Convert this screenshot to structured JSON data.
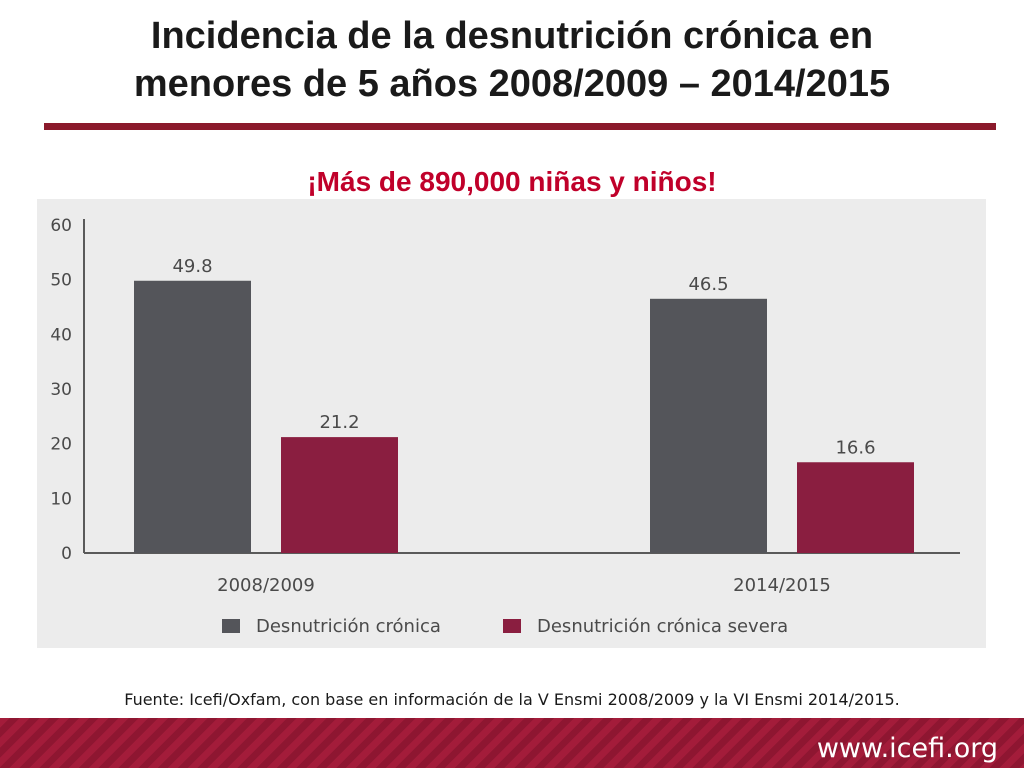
{
  "slide": {
    "title_line1": "Incidencia de la desnutrición crónica en",
    "title_line2": "menores de 5 años 2008/2009 – 2014/2015",
    "headline": "¡Más de 890,000 niñas y niños!",
    "source": "Fuente: Icefi/Oxfam, con base en información de la V Ensmi 2008/2009 y la VI Ensmi 2014/2015.",
    "footer_url": "www.icefi.org"
  },
  "colors": {
    "title_rule": "#8b1a2b",
    "headline": "#c0002a",
    "series_1": "#54555a",
    "series_2": "#8a1e40",
    "footer_band": "#a31c3a"
  },
  "chart_data": {
    "type": "bar",
    "categories": [
      "2008/2009",
      "2014/2015"
    ],
    "series": [
      {
        "name": "Desnutrición crónica",
        "values": [
          49.8,
          46.5
        ]
      },
      {
        "name": "Desnutrición crónica severa",
        "values": [
          21.2,
          16.6
        ]
      }
    ],
    "yticks": [
      "0",
      "10",
      "20",
      "30",
      "40",
      "50",
      "60"
    ],
    "ylim": [
      0,
      60
    ],
    "data_labels": true,
    "grid": false,
    "legend_position": "bottom"
  }
}
